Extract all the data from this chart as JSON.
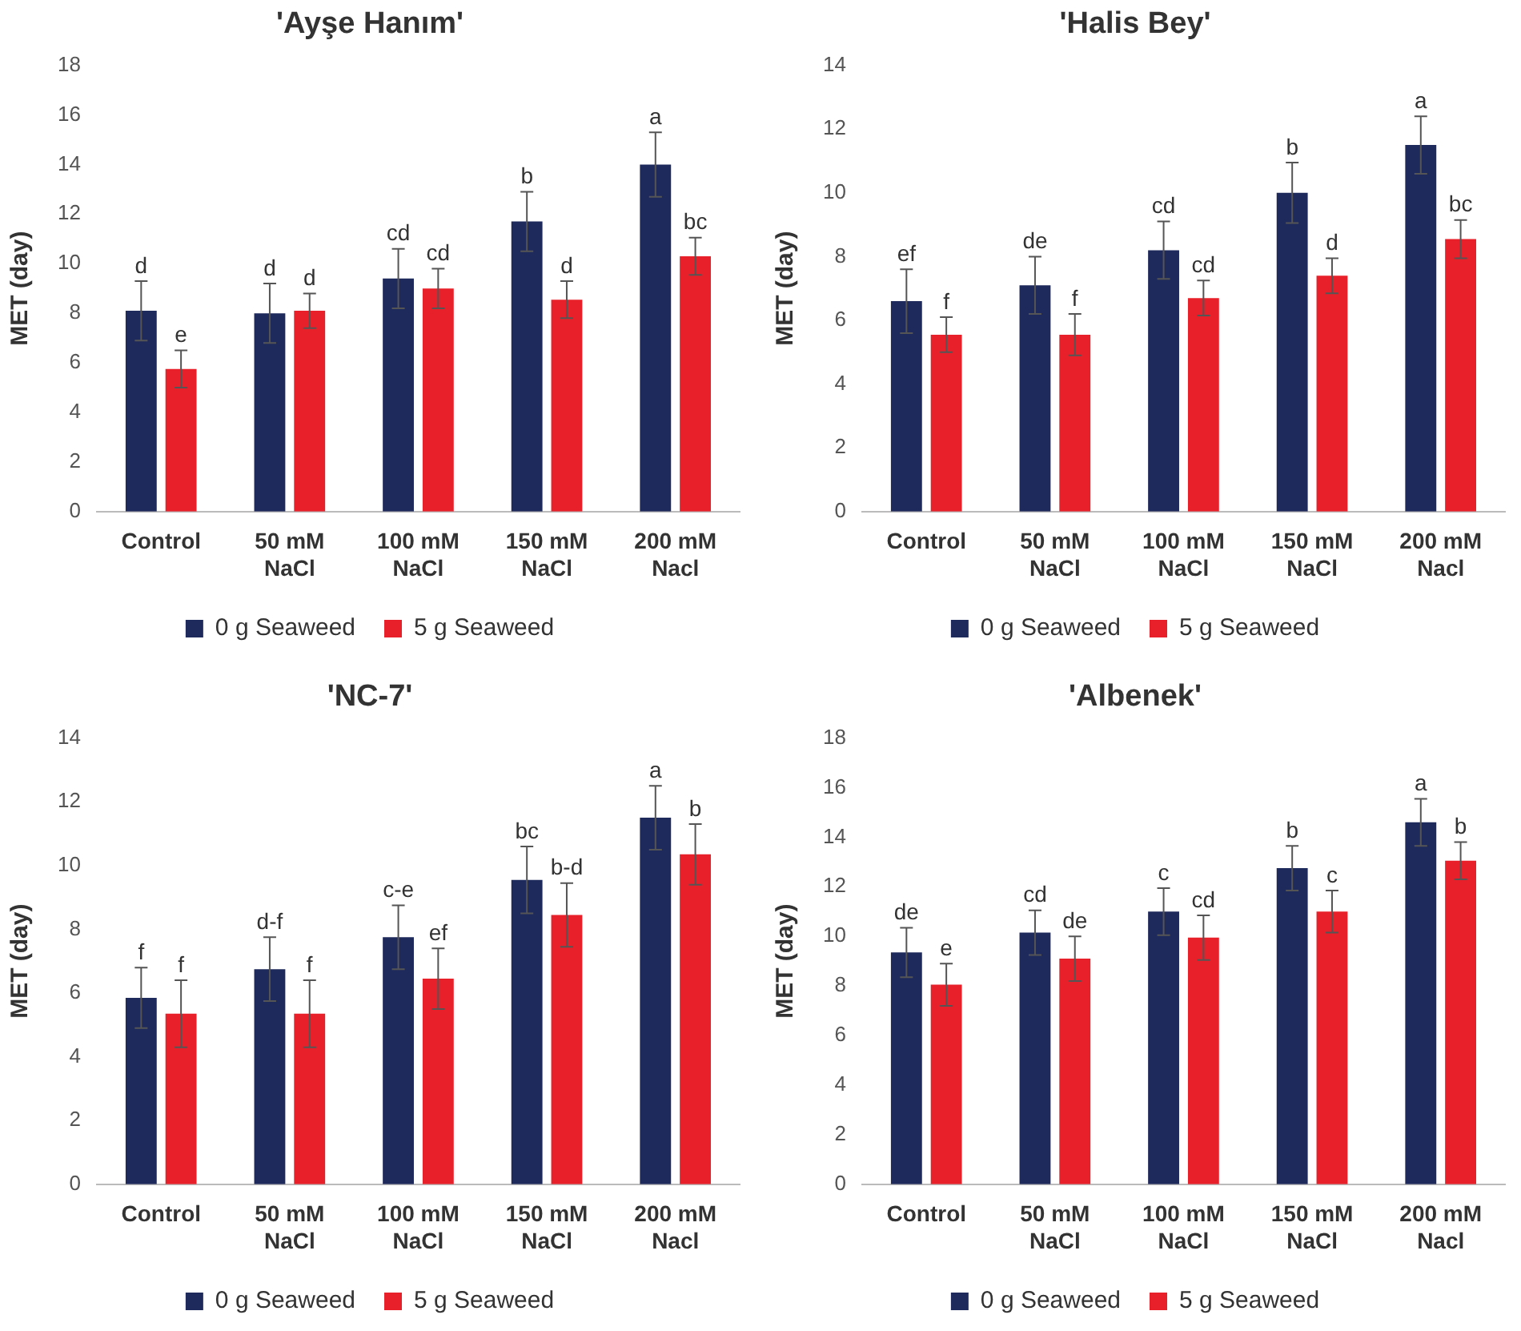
{
  "chart_data": [
    {
      "type": "bar",
      "title": "'Ayşe Hanım'",
      "ylabel": "MET (day)",
      "categories": [
        "Control",
        "50 mM NaCl",
        "100 mM NaCl",
        "150 mM NaCl",
        "200 mM Nacl"
      ],
      "ylim": [
        0,
        18
      ],
      "yticks": [
        0,
        2,
        4,
        6,
        8,
        10,
        12,
        14,
        16,
        18
      ],
      "grid": false,
      "legend": "bottom",
      "series": [
        {
          "name": "0 g Seaweed",
          "color": "#1f2a5c",
          "values": [
            8.1,
            8.0,
            9.4,
            11.7,
            14.0
          ],
          "errors": [
            1.2,
            1.2,
            1.2,
            1.2,
            1.3
          ],
          "value_labels": [
            "d",
            "d",
            "cd",
            "b",
            "a"
          ]
        },
        {
          "name": "5 g Seaweed",
          "color": "#e8202a",
          "values": [
            5.75,
            8.1,
            9.0,
            8.55,
            10.3
          ],
          "errors": [
            0.75,
            0.7,
            0.8,
            0.75,
            0.75
          ],
          "value_labels": [
            "e",
            "d",
            "cd",
            "d",
            "bc"
          ]
        }
      ]
    },
    {
      "type": "bar",
      "title": "'Halis Bey'",
      "ylabel": "MET (day)",
      "categories": [
        "Control",
        "50 mM NaCl",
        "100 mM NaCl",
        "150 mM NaCl",
        "200 mM Nacl"
      ],
      "ylim": [
        0,
        14
      ],
      "yticks": [
        0,
        2,
        4,
        6,
        8,
        10,
        12,
        14
      ],
      "grid": false,
      "legend": "bottom",
      "series": [
        {
          "name": "0 g Seaweed",
          "color": "#1f2a5c",
          "values": [
            6.6,
            7.1,
            8.2,
            10.0,
            11.5
          ],
          "errors": [
            1.0,
            0.9,
            0.9,
            0.95,
            0.9
          ],
          "value_labels": [
            "ef",
            "de",
            "cd",
            "b",
            "a"
          ]
        },
        {
          "name": "5 g Seaweed",
          "color": "#e8202a",
          "values": [
            5.55,
            5.55,
            6.7,
            7.4,
            8.55
          ],
          "errors": [
            0.55,
            0.65,
            0.55,
            0.55,
            0.6
          ],
          "value_labels": [
            "f",
            "f",
            "cd",
            "d",
            "bc"
          ]
        }
      ]
    },
    {
      "type": "bar",
      "title": "'NC-7'",
      "ylabel": "MET (day)",
      "categories": [
        "Control",
        "50 mM NaCl",
        "100 mM NaCl",
        "150 mM NaCl",
        "200 mM Nacl"
      ],
      "ylim": [
        0,
        14
      ],
      "yticks": [
        0,
        2,
        4,
        6,
        8,
        10,
        12,
        14
      ],
      "grid": false,
      "legend": "bottom",
      "series": [
        {
          "name": "0 g Seaweed",
          "color": "#1f2a5c",
          "values": [
            5.85,
            6.75,
            7.75,
            9.55,
            11.5
          ],
          "errors": [
            0.95,
            1.0,
            1.0,
            1.05,
            1.0
          ],
          "value_labels": [
            "f",
            "d-f",
            "c-e",
            "bc",
            "a"
          ]
        },
        {
          "name": "5 g Seaweed",
          "color": "#e8202a",
          "values": [
            5.35,
            5.35,
            6.45,
            8.45,
            10.35
          ],
          "errors": [
            1.05,
            1.05,
            0.95,
            1.0,
            0.95
          ],
          "value_labels": [
            "f",
            "f",
            "ef",
            "b-d",
            "b"
          ]
        }
      ]
    },
    {
      "type": "bar",
      "title": "'Albenek'",
      "ylabel": "MET (day)",
      "categories": [
        "Control",
        "50 mM NaCl",
        "100 mM NaCl",
        "150 mM NaCl",
        "200 mM Nacl"
      ],
      "ylim": [
        0,
        18
      ],
      "yticks": [
        0,
        2,
        4,
        6,
        8,
        10,
        12,
        14,
        16,
        18
      ],
      "grid": false,
      "legend": "bottom",
      "series": [
        {
          "name": "0 g Seaweed",
          "color": "#1f2a5c",
          "values": [
            9.35,
            10.15,
            11.0,
            12.75,
            14.6
          ],
          "errors": [
            1.0,
            0.9,
            0.95,
            0.9,
            0.95
          ],
          "value_labels": [
            "de",
            "cd",
            "c",
            "b",
            "a"
          ]
        },
        {
          "name": "5 g Seaweed",
          "color": "#e8202a",
          "values": [
            8.05,
            9.1,
            9.95,
            11.0,
            13.05
          ],
          "errors": [
            0.85,
            0.9,
            0.9,
            0.85,
            0.75
          ],
          "value_labels": [
            "e",
            "de",
            "cd",
            "c",
            "b"
          ]
        }
      ]
    }
  ]
}
